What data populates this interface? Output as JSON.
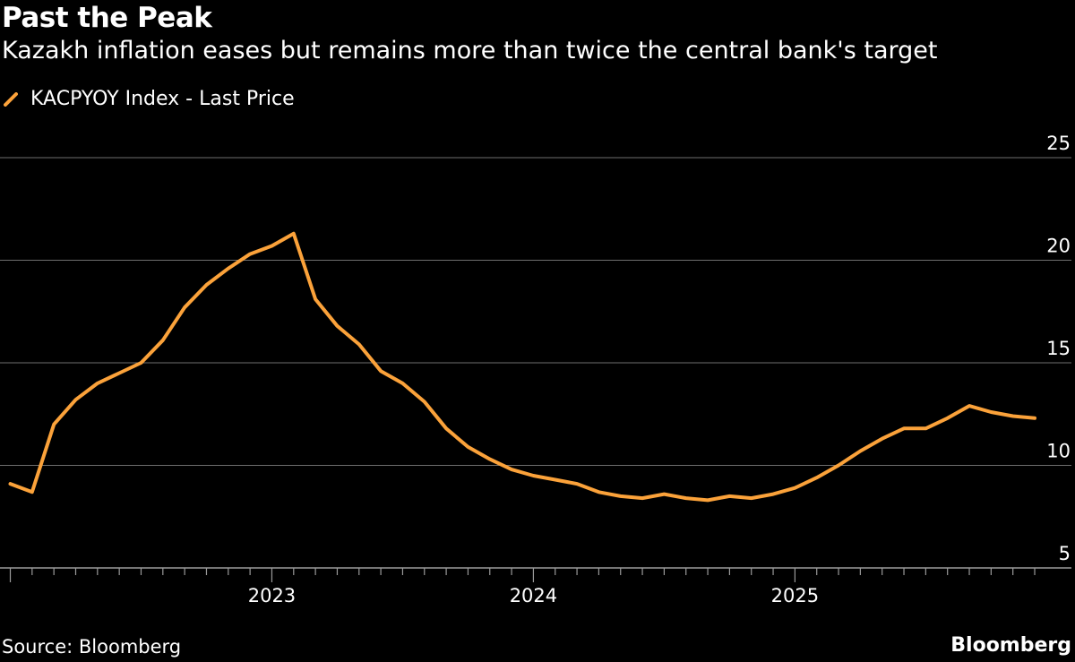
{
  "header": {
    "title": "Past the Peak",
    "subtitle": "Kazakh inflation eases but remains more than twice the central bank's target"
  },
  "footer": {
    "source": "Source: Bloomberg",
    "brand": "Bloomberg"
  },
  "colors": {
    "background": "#000000",
    "line": "#FBA23A",
    "grid": "#6E6E6E",
    "text": "#FFFFFF"
  },
  "chart_data": {
    "type": "line",
    "title": "Past the Peak",
    "subtitle": "Kazakh inflation eases but remains more than twice the central bank's target",
    "xlabel": "",
    "ylabel": "",
    "ylim": [
      5,
      25
    ],
    "xlim": [
      "2022-02",
      "2025-12"
    ],
    "y_ticks": [
      5,
      10,
      15,
      20,
      25
    ],
    "x_tick_labels": [
      "2023",
      "2024",
      "2025"
    ],
    "grid": true,
    "legend_position": "top-left",
    "series": [
      {
        "name": "KACPYOY Index - Last Price",
        "color": "#FBA23A",
        "x": [
          "2022-01",
          "2022-02",
          "2022-03",
          "2022-04",
          "2022-05",
          "2022-06",
          "2022-07",
          "2022-08",
          "2022-09",
          "2022-10",
          "2022-11",
          "2022-12",
          "2023-01",
          "2023-02",
          "2023-03",
          "2023-04",
          "2023-05",
          "2023-06",
          "2023-07",
          "2023-08",
          "2023-09",
          "2023-10",
          "2023-11",
          "2023-12",
          "2024-01",
          "2024-02",
          "2024-03",
          "2024-04",
          "2024-05",
          "2024-06",
          "2024-07",
          "2024-08",
          "2024-09",
          "2024-10",
          "2024-11",
          "2024-12",
          "2025-01",
          "2025-02",
          "2025-03",
          "2025-04",
          "2025-05",
          "2025-06",
          "2025-07",
          "2025-08",
          "2025-09",
          "2025-10",
          "2025-11",
          "2025-12"
        ],
        "values": [
          9.1,
          8.7,
          12.0,
          13.2,
          14.0,
          14.5,
          15.0,
          16.1,
          17.7,
          18.8,
          19.6,
          20.3,
          20.7,
          21.3,
          18.1,
          16.8,
          15.9,
          14.6,
          14.0,
          13.1,
          11.8,
          10.9,
          10.3,
          9.8,
          9.5,
          9.3,
          9.1,
          8.7,
          8.5,
          8.4,
          8.6,
          8.4,
          8.3,
          8.5,
          8.4,
          8.6,
          8.9,
          9.4,
          10.0,
          10.7,
          11.3,
          11.8,
          11.8,
          12.3,
          12.9,
          12.6,
          12.4,
          12.3
        ]
      }
    ]
  }
}
